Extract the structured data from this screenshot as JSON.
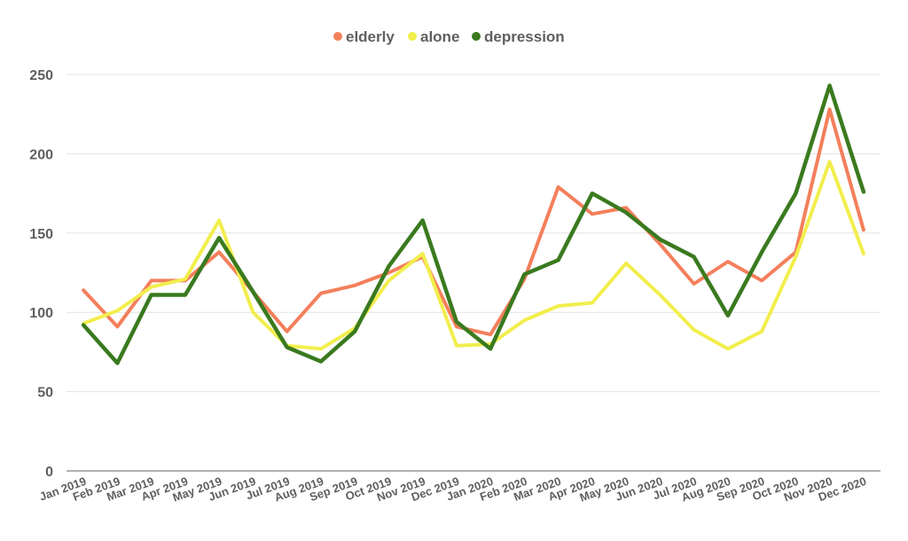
{
  "chart_data": {
    "type": "line",
    "title": "",
    "xlabel": "",
    "ylabel": "",
    "ylim": [
      0,
      250
    ],
    "yticks": [
      0,
      50,
      100,
      150,
      200,
      250
    ],
    "grid": true,
    "legend_position": "top",
    "categories": [
      "Jan 2019",
      "Feb 2019",
      "Mar 2019",
      "Apr 2019",
      "May 2019",
      "Jun 2019",
      "Jul 2019",
      "Aug 2019",
      "Sep 2019",
      "Oct 2019",
      "Nov 2019",
      "Dec 2019",
      "Jan 2020",
      "Feb 2020",
      "Mar 2020",
      "Apr 2020",
      "May 2020",
      "Jun 2020",
      "Jul 2020",
      "Aug 2020",
      "Sep 2020",
      "Oct 2020",
      "Nov 2020",
      "Dec 2020"
    ],
    "series": [
      {
        "name": "elderly",
        "color": "#f47f5b",
        "values": [
          114,
          91,
          120,
          120,
          138,
          113,
          88,
          112,
          117,
          125,
          135,
          91,
          86,
          121,
          179,
          162,
          166,
          143,
          118,
          132,
          120,
          138,
          228,
          152
        ]
      },
      {
        "name": "alone",
        "color": "#f2ee4c",
        "values": [
          93,
          101,
          116,
          121,
          158,
          100,
          79,
          77,
          90,
          120,
          137,
          79,
          80,
          95,
          104,
          106,
          131,
          111,
          89,
          77,
          88,
          135,
          195,
          137
        ]
      },
      {
        "name": "depression",
        "color": "#3a7a1f",
        "values": [
          92,
          68,
          111,
          111,
          147,
          113,
          78,
          69,
          88,
          129,
          158,
          94,
          77,
          124,
          133,
          175,
          163,
          146,
          135,
          98,
          138,
          175,
          243,
          176
        ]
      }
    ]
  }
}
